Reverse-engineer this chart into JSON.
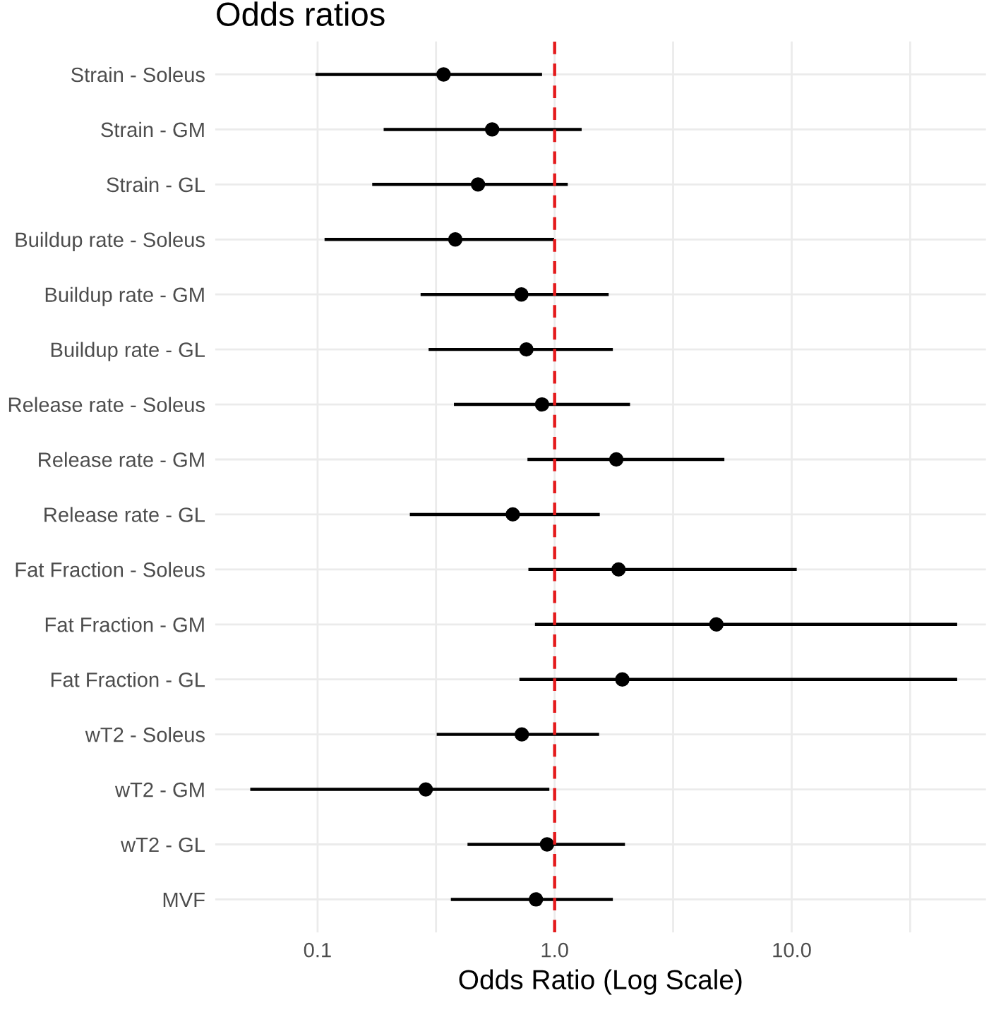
{
  "chart_data": {
    "type": "scatter",
    "orientation": "horizontal",
    "title": "Odds ratios",
    "xlabel": "Odds Ratio (Log Scale)",
    "categories": [
      "Strain - Soleus",
      "Strain - GM",
      "Strain - GL",
      "Buildup rate - Soleus",
      "Buildup rate - GM",
      "Buildup rate - GL",
      "Release rate - Soleus",
      "Release rate - GM",
      "Release rate - GL",
      "Fat Fraction - Soleus",
      "Fat Fraction - GM",
      "Fat Fraction - GL",
      "wT2 - Soleus",
      "wT2 - GM",
      "wT2 - GL",
      "MVF"
    ],
    "values": [
      0.34,
      0.545,
      0.475,
      0.381,
      0.724,
      0.76,
      0.885,
      1.82,
      0.666,
      1.86,
      4.81,
      1.93,
      0.727,
      0.286,
      0.929,
      0.834
    ],
    "errors": [
      [
        0.098,
        0.885
      ],
      [
        0.19,
        1.3
      ],
      [
        0.17,
        1.136
      ],
      [
        0.107,
        0.995
      ],
      [
        0.272,
        1.69
      ],
      [
        0.294,
        1.76
      ],
      [
        0.376,
        2.08
      ],
      [
        0.768,
        5.2
      ],
      [
        0.245,
        1.55
      ],
      [
        0.775,
        10.5
      ],
      [
        0.826,
        49.9
      ],
      [
        0.71,
        49.9
      ],
      [
        0.318,
        1.54
      ],
      [
        0.052,
        0.95
      ],
      [
        0.429,
        1.98
      ],
      [
        0.365,
        1.76
      ]
    ],
    "color": "#000000",
    "marker": "circle",
    "log": "x",
    "xlim": [
      0.037,
      66
    ],
    "xticks": [
      {
        "value": 0.1,
        "label": "0.1"
      },
      {
        "value": 0.316,
        "label": null
      },
      {
        "value": 1,
        "label": "1.0"
      },
      {
        "value": 3.16,
        "label": null
      },
      {
        "value": 10,
        "label": "10.0"
      },
      {
        "value": 31.6,
        "label": null
      }
    ],
    "ref_lines": [
      {
        "axis": "x",
        "value": 1,
        "label": null,
        "color": "#e41a1c",
        "line_style": "dashed"
      }
    ],
    "grid": true,
    "legend": false
  }
}
